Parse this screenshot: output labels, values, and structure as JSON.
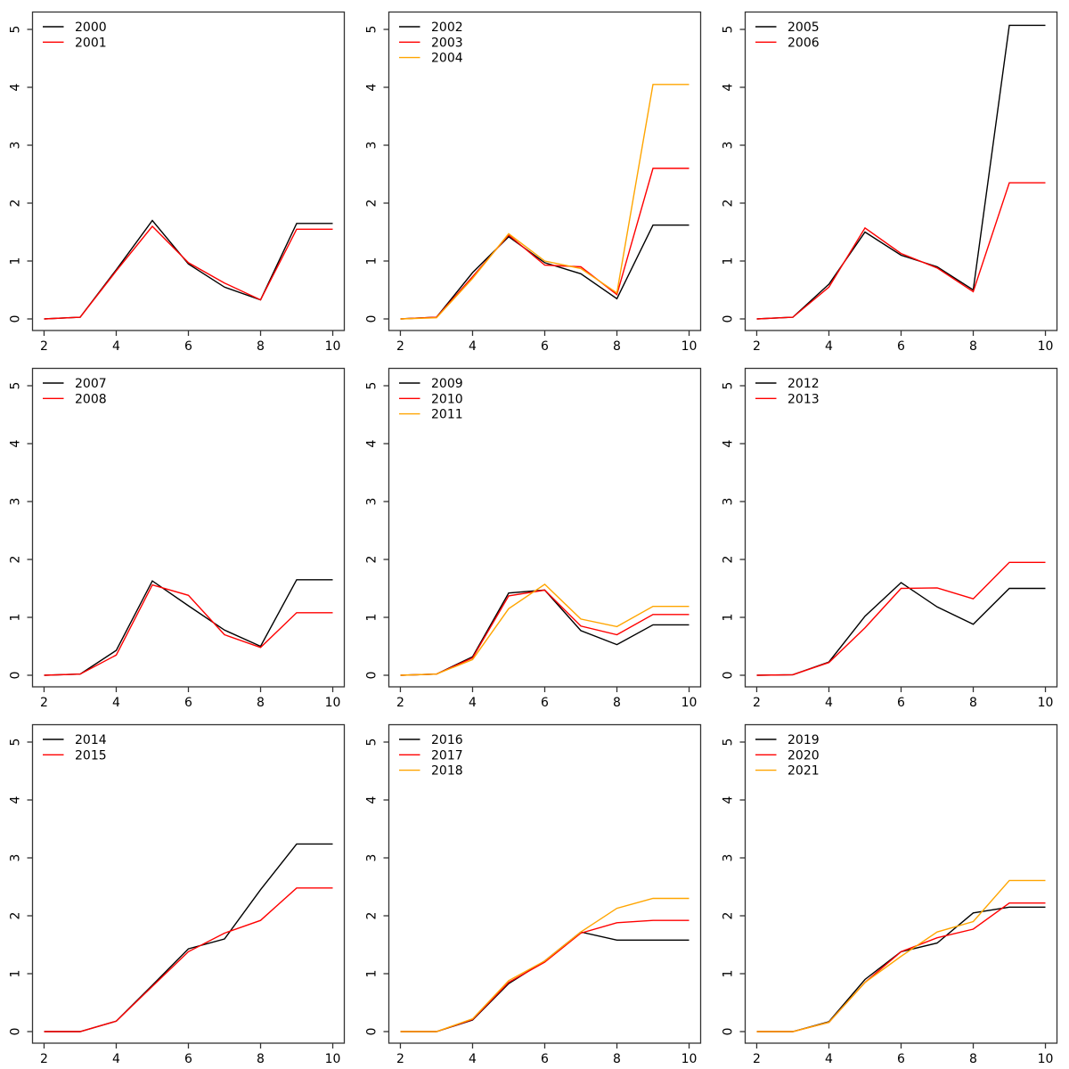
{
  "figure": {
    "rows": 3,
    "cols": 3,
    "background": "#ffffff",
    "box_color": "#333333",
    "tick_color": "#333333"
  },
  "palette": {
    "black": "#000000",
    "red": "#ff0000",
    "orange": "#ffa500"
  },
  "chart_data": [
    {
      "type": "line",
      "title": "",
      "xlabel": "",
      "ylabel": "",
      "x": [
        2,
        3,
        4,
        5,
        6,
        7,
        8,
        9,
        10
      ],
      "x_ticks": [
        2,
        4,
        6,
        8,
        10
      ],
      "y_ticks": [
        0,
        1,
        2,
        3,
        4,
        5
      ],
      "xlim": [
        1.68,
        10.32
      ],
      "ylim": [
        -0.2,
        5.3
      ],
      "grid": false,
      "legend_position": "topleft",
      "series": [
        {
          "name": "2000",
          "color": "#000000",
          "values": [
            0,
            0.03,
            0.85,
            1.7,
            0.95,
            0.55,
            0.33,
            1.65,
            1.65
          ]
        },
        {
          "name": "2001",
          "color": "#ff0000",
          "values": [
            0,
            0.03,
            0.83,
            1.6,
            0.97,
            0.62,
            0.33,
            1.55,
            1.55
          ]
        }
      ]
    },
    {
      "type": "line",
      "title": "",
      "xlabel": "",
      "ylabel": "",
      "x": [
        2,
        3,
        4,
        5,
        6,
        7,
        8,
        9,
        10
      ],
      "x_ticks": [
        2,
        4,
        6,
        8,
        10
      ],
      "y_ticks": [
        0,
        1,
        2,
        3,
        4,
        5
      ],
      "xlim": [
        1.68,
        10.32
      ],
      "ylim": [
        -0.2,
        5.3
      ],
      "grid": false,
      "legend_position": "topleft",
      "series": [
        {
          "name": "2002",
          "color": "#000000",
          "values": [
            0,
            0.03,
            0.8,
            1.42,
            0.97,
            0.78,
            0.35,
            1.62,
            1.62
          ]
        },
        {
          "name": "2003",
          "color": "#ff0000",
          "values": [
            0,
            0.03,
            0.73,
            1.45,
            0.93,
            0.9,
            0.42,
            2.6,
            2.6
          ]
        },
        {
          "name": "2004",
          "color": "#ffa500",
          "values": [
            0,
            0.02,
            0.7,
            1.47,
            1.0,
            0.87,
            0.45,
            4.05,
            4.05
          ]
        }
      ]
    },
    {
      "type": "line",
      "title": "",
      "xlabel": "",
      "ylabel": "",
      "x": [
        2,
        3,
        4,
        5,
        6,
        7,
        8,
        9,
        10
      ],
      "x_ticks": [
        2,
        4,
        6,
        8,
        10
      ],
      "y_ticks": [
        0,
        1,
        2,
        3,
        4,
        5
      ],
      "xlim": [
        1.68,
        10.32
      ],
      "ylim": [
        -0.2,
        5.3
      ],
      "grid": false,
      "legend_position": "topleft",
      "series": [
        {
          "name": "2005",
          "color": "#000000",
          "values": [
            0,
            0.03,
            0.6,
            1.5,
            1.1,
            0.9,
            0.5,
            5.07,
            5.07
          ]
        },
        {
          "name": "2006",
          "color": "#ff0000",
          "values": [
            0,
            0.03,
            0.55,
            1.57,
            1.13,
            0.88,
            0.47,
            2.35,
            2.35
          ]
        }
      ]
    },
    {
      "type": "line",
      "title": "",
      "xlabel": "",
      "ylabel": "",
      "x": [
        2,
        3,
        4,
        5,
        6,
        7,
        8,
        9,
        10
      ],
      "x_ticks": [
        2,
        4,
        6,
        8,
        10
      ],
      "y_ticks": [
        0,
        1,
        2,
        3,
        4,
        5
      ],
      "xlim": [
        1.68,
        10.32
      ],
      "ylim": [
        -0.2,
        5.3
      ],
      "grid": false,
      "legend_position": "topleft",
      "series": [
        {
          "name": "2007",
          "color": "#000000",
          "values": [
            0,
            0.02,
            0.43,
            1.63,
            1.2,
            0.78,
            0.5,
            1.65,
            1.65
          ]
        },
        {
          "name": "2008",
          "color": "#ff0000",
          "values": [
            0,
            0.02,
            0.35,
            1.56,
            1.38,
            0.7,
            0.48,
            1.08,
            1.08
          ]
        }
      ]
    },
    {
      "type": "line",
      "title": "",
      "xlabel": "",
      "ylabel": "",
      "x": [
        2,
        3,
        4,
        5,
        6,
        7,
        8,
        9,
        10
      ],
      "x_ticks": [
        2,
        4,
        6,
        8,
        10
      ],
      "y_ticks": [
        0,
        1,
        2,
        3,
        4,
        5
      ],
      "xlim": [
        1.68,
        10.32
      ],
      "ylim": [
        -0.2,
        5.3
      ],
      "grid": false,
      "legend_position": "topleft",
      "series": [
        {
          "name": "2009",
          "color": "#000000",
          "values": [
            0,
            0.02,
            0.32,
            1.42,
            1.47,
            0.77,
            0.53,
            0.87,
            0.87
          ]
        },
        {
          "name": "2010",
          "color": "#ff0000",
          "values": [
            0,
            0.02,
            0.3,
            1.37,
            1.47,
            0.85,
            0.7,
            1.05,
            1.05
          ]
        },
        {
          "name": "2011",
          "color": "#ffa500",
          "values": [
            0,
            0.02,
            0.27,
            1.15,
            1.57,
            0.97,
            0.84,
            1.19,
            1.19
          ]
        }
      ]
    },
    {
      "type": "line",
      "title": "",
      "xlabel": "",
      "ylabel": "",
      "x": [
        2,
        3,
        4,
        5,
        6,
        7,
        8,
        9,
        10
      ],
      "x_ticks": [
        2,
        4,
        6,
        8,
        10
      ],
      "y_ticks": [
        0,
        1,
        2,
        3,
        4,
        5
      ],
      "xlim": [
        1.68,
        10.32
      ],
      "ylim": [
        -0.2,
        5.3
      ],
      "grid": false,
      "legend_position": "topleft",
      "series": [
        {
          "name": "2012",
          "color": "#000000",
          "values": [
            0,
            0.01,
            0.23,
            1.02,
            1.6,
            1.18,
            0.88,
            1.5,
            1.5
          ]
        },
        {
          "name": "2013",
          "color": "#ff0000",
          "values": [
            0,
            0.01,
            0.22,
            0.82,
            1.5,
            1.51,
            1.32,
            1.95,
            1.95
          ]
        }
      ]
    },
    {
      "type": "line",
      "title": "",
      "xlabel": "",
      "ylabel": "",
      "x": [
        2,
        3,
        4,
        5,
        6,
        7,
        8,
        9,
        10
      ],
      "x_ticks": [
        2,
        4,
        6,
        8,
        10
      ],
      "y_ticks": [
        0,
        1,
        2,
        3,
        4,
        5
      ],
      "xlim": [
        1.68,
        10.32
      ],
      "ylim": [
        -0.2,
        5.3
      ],
      "grid": false,
      "legend_position": "topleft",
      "series": [
        {
          "name": "2014",
          "color": "#000000",
          "values": [
            0,
            0.0,
            0.18,
            0.8,
            1.43,
            1.6,
            2.45,
            3.24,
            3.24
          ]
        },
        {
          "name": "2015",
          "color": "#ff0000",
          "values": [
            0,
            0.0,
            0.18,
            0.78,
            1.38,
            1.7,
            1.92,
            2.48,
            2.48
          ]
        }
      ]
    },
    {
      "type": "line",
      "title": "",
      "xlabel": "",
      "ylabel": "",
      "x": [
        2,
        3,
        4,
        5,
        6,
        7,
        8,
        9,
        10
      ],
      "x_ticks": [
        2,
        4,
        6,
        8,
        10
      ],
      "y_ticks": [
        0,
        1,
        2,
        3,
        4,
        5
      ],
      "xlim": [
        1.68,
        10.32
      ],
      "ylim": [
        -0.2,
        5.3
      ],
      "grid": false,
      "legend_position": "topleft",
      "series": [
        {
          "name": "2016",
          "color": "#000000",
          "values": [
            0,
            0.0,
            0.2,
            0.83,
            1.22,
            1.72,
            1.58,
            1.58,
            1.58
          ]
        },
        {
          "name": "2017",
          "color": "#ff0000",
          "values": [
            0,
            0.0,
            0.21,
            0.85,
            1.2,
            1.7,
            1.88,
            1.92,
            1.92
          ]
        },
        {
          "name": "2018",
          "color": "#ffa500",
          "values": [
            0,
            0.0,
            0.22,
            0.88,
            1.22,
            1.72,
            2.13,
            2.3,
            2.3
          ]
        }
      ]
    },
    {
      "type": "line",
      "title": "",
      "xlabel": "",
      "ylabel": "",
      "x": [
        2,
        3,
        4,
        5,
        6,
        7,
        8,
        9,
        10
      ],
      "x_ticks": [
        2,
        4,
        6,
        8,
        10
      ],
      "y_ticks": [
        0,
        1,
        2,
        3,
        4,
        5
      ],
      "xlim": [
        1.68,
        10.32
      ],
      "ylim": [
        -0.2,
        5.3
      ],
      "grid": false,
      "legend_position": "topleft",
      "series": [
        {
          "name": "2019",
          "color": "#000000",
          "values": [
            0,
            0.0,
            0.17,
            0.9,
            1.38,
            1.53,
            2.05,
            2.15,
            2.15
          ]
        },
        {
          "name": "2020",
          "color": "#ff0000",
          "values": [
            0,
            0.0,
            0.16,
            0.85,
            1.38,
            1.62,
            1.77,
            2.22,
            2.22
          ]
        },
        {
          "name": "2021",
          "color": "#ffa500",
          "values": [
            0,
            0.0,
            0.16,
            0.85,
            1.3,
            1.72,
            1.9,
            2.61,
            2.61
          ]
        }
      ]
    }
  ]
}
